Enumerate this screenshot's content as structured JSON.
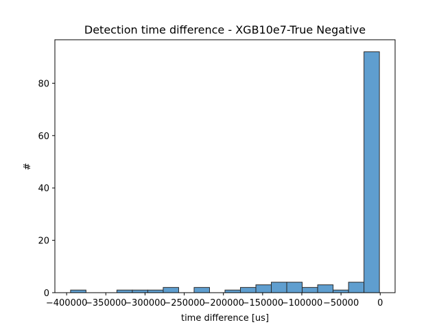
{
  "chart_data": {
    "type": "bar",
    "subtype": "histogram",
    "title": "Detection time difference - XGB10e7-True Negative",
    "xlabel": "time difference [us]",
    "ylabel": "#",
    "xlim": [
      -415000,
      19000
    ],
    "ylim": [
      0,
      96.6
    ],
    "grid": false,
    "bar_color": "#5f9ecf",
    "edge_color": "#2a2a2a",
    "x_ticks": [
      {
        "value": -400000,
        "label": "−400000"
      },
      {
        "value": -350000,
        "label": "−350000"
      },
      {
        "value": -300000,
        "label": "−300000"
      },
      {
        "value": -250000,
        "label": "−250000"
      },
      {
        "value": -200000,
        "label": "−200000"
      },
      {
        "value": -150000,
        "label": "−150000"
      },
      {
        "value": -100000,
        "label": "−100000"
      },
      {
        "value": -50000,
        "label": "−50000"
      },
      {
        "value": 0,
        "label": "0"
      }
    ],
    "y_ticks": [
      {
        "value": 0,
        "label": "0"
      },
      {
        "value": 20,
        "label": "20"
      },
      {
        "value": 40,
        "label": "40"
      },
      {
        "value": 60,
        "label": "60"
      },
      {
        "value": 80,
        "label": "80"
      }
    ],
    "bins": [
      {
        "start": -395000,
        "end": -375300,
        "count": 1
      },
      {
        "start": -375300,
        "end": -355600,
        "count": 0
      },
      {
        "start": -355600,
        "end": -335900,
        "count": 0
      },
      {
        "start": -335900,
        "end": -316200,
        "count": 1
      },
      {
        "start": -316200,
        "end": -296500,
        "count": 1
      },
      {
        "start": -296500,
        "end": -276800,
        "count": 1
      },
      {
        "start": -276800,
        "end": -257100,
        "count": 2
      },
      {
        "start": -257100,
        "end": -237400,
        "count": 0
      },
      {
        "start": -237400,
        "end": -217700,
        "count": 2
      },
      {
        "start": -217700,
        "end": -198000,
        "count": 0
      },
      {
        "start": -198000,
        "end": -178300,
        "count": 1
      },
      {
        "start": -178300,
        "end": -158600,
        "count": 2
      },
      {
        "start": -158600,
        "end": -138900,
        "count": 3
      },
      {
        "start": -138900,
        "end": -119200,
        "count": 4
      },
      {
        "start": -119200,
        "end": -99500,
        "count": 4
      },
      {
        "start": -99500,
        "end": -79800,
        "count": 2
      },
      {
        "start": -79800,
        "end": -60100,
        "count": 3
      },
      {
        "start": -60100,
        "end": -40400,
        "count": 1
      },
      {
        "start": -40400,
        "end": -20700,
        "count": 4
      },
      {
        "start": -20700,
        "end": -1000,
        "count": 92
      }
    ]
  }
}
